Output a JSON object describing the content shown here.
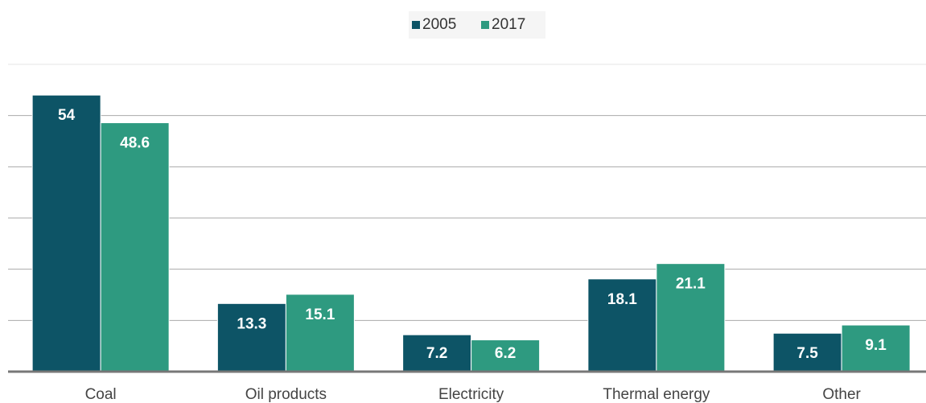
{
  "chart_data": {
    "type": "bar",
    "categories": [
      "Coal",
      "Oil products",
      "Electricity",
      "Thermal energy",
      "Other"
    ],
    "series": [
      {
        "name": "2005",
        "color": "#0d5466",
        "values": [
          54,
          13.3,
          7.2,
          18.1,
          7.5
        ]
      },
      {
        "name": "2017",
        "color": "#2e9a80",
        "values": [
          48.6,
          15.1,
          6.2,
          21.1,
          9.1
        ]
      }
    ],
    "ylim": [
      0,
      60
    ],
    "yticks": [
      0,
      10,
      20,
      30,
      40,
      50,
      60
    ],
    "grid": true,
    "legend": "top"
  }
}
